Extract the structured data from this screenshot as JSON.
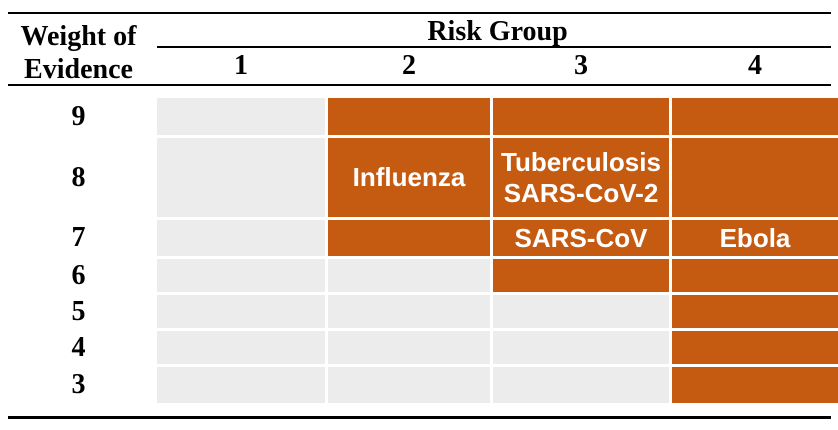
{
  "figure": {
    "row_axis_title_lines": [
      "Weight of",
      "Evidence"
    ],
    "column_axis_title": "Risk Group",
    "column_headers": [
      "1",
      "2",
      "3",
      "4"
    ],
    "rows": [
      {
        "weight": "9",
        "cells": [
          {
            "filled": false,
            "lines": []
          },
          {
            "filled": true,
            "lines": []
          },
          {
            "filled": true,
            "lines": []
          },
          {
            "filled": true,
            "lines": []
          }
        ]
      },
      {
        "weight": "8",
        "cells": [
          {
            "filled": false,
            "lines": []
          },
          {
            "filled": true,
            "lines": [
              "Influenza"
            ]
          },
          {
            "filled": true,
            "lines": [
              "Tuberculosis",
              "SARS-CoV-2"
            ]
          },
          {
            "filled": true,
            "lines": []
          }
        ]
      },
      {
        "weight": "7",
        "cells": [
          {
            "filled": false,
            "lines": []
          },
          {
            "filled": true,
            "lines": []
          },
          {
            "filled": true,
            "lines": [
              "SARS-CoV"
            ]
          },
          {
            "filled": true,
            "lines": [
              "Ebola"
            ]
          }
        ]
      },
      {
        "weight": "6",
        "cells": [
          {
            "filled": false,
            "lines": []
          },
          {
            "filled": false,
            "lines": []
          },
          {
            "filled": true,
            "lines": []
          },
          {
            "filled": true,
            "lines": []
          }
        ]
      },
      {
        "weight": "5",
        "cells": [
          {
            "filled": false,
            "lines": []
          },
          {
            "filled": false,
            "lines": []
          },
          {
            "filled": false,
            "lines": []
          },
          {
            "filled": true,
            "lines": []
          }
        ]
      },
      {
        "weight": "4",
        "cells": [
          {
            "filled": false,
            "lines": []
          },
          {
            "filled": false,
            "lines": []
          },
          {
            "filled": false,
            "lines": []
          },
          {
            "filled": true,
            "lines": []
          }
        ]
      },
      {
        "weight": "3",
        "cells": [
          {
            "filled": false,
            "lines": []
          },
          {
            "filled": false,
            "lines": []
          },
          {
            "filled": false,
            "lines": []
          },
          {
            "filled": true,
            "lines": []
          }
        ]
      }
    ],
    "colors": {
      "filled_cell": "#C55A11",
      "empty_cell": "#ECECEC",
      "cell_text": "#FFFFFF",
      "rule": "#000000",
      "header_text": "#000000"
    }
  },
  "chart_data": {
    "type": "heatmap",
    "x_label": "Risk Group",
    "y_label": "Weight of Evidence",
    "x_categories": [
      "1",
      "2",
      "3",
      "4"
    ],
    "y_categories": [
      "9",
      "8",
      "7",
      "6",
      "5",
      "4",
      "3"
    ],
    "filled_cells_by_weight": {
      "9": [
        "2",
        "3",
        "4"
      ],
      "8": [
        "2",
        "3",
        "4"
      ],
      "7": [
        "2",
        "3",
        "4"
      ],
      "6": [
        "3",
        "4"
      ],
      "5": [
        "4"
      ],
      "4": [
        "4"
      ],
      "3": [
        "4"
      ]
    },
    "annotations": [
      {
        "risk_group": "2",
        "weight_of_evidence": "8",
        "labels": [
          "Influenza"
        ]
      },
      {
        "risk_group": "3",
        "weight_of_evidence": "8",
        "labels": [
          "Tuberculosis",
          "SARS-CoV-2"
        ]
      },
      {
        "risk_group": "3",
        "weight_of_evidence": "7",
        "labels": [
          "SARS-CoV"
        ]
      },
      {
        "risk_group": "4",
        "weight_of_evidence": "7",
        "labels": [
          "Ebola"
        ]
      }
    ],
    "fill_color": "#C55A11",
    "empty_color": "#ECECEC",
    "legend": "off",
    "grid": "off"
  }
}
